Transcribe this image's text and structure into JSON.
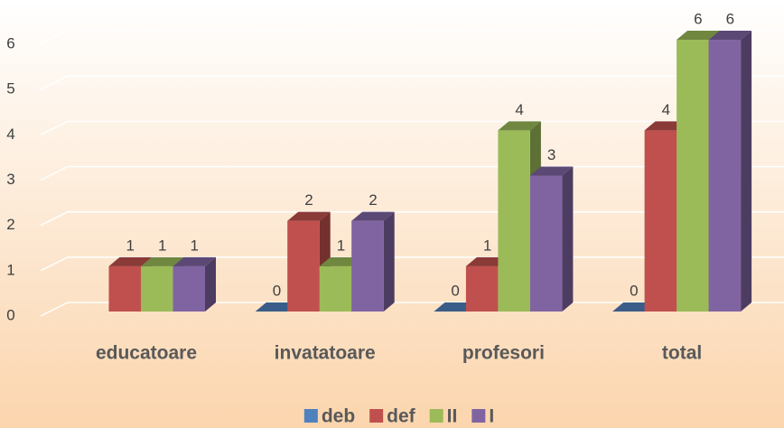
{
  "chart_data": {
    "type": "bar3d",
    "categories": [
      "educatoare",
      "invatatoare",
      "profesori",
      "total"
    ],
    "series": [
      {
        "name": "deb",
        "color": "#4f81bd",
        "values": [
          null,
          0,
          0,
          0
        ]
      },
      {
        "name": "def",
        "color": "#c0504d",
        "values": [
          1,
          2,
          1,
          4
        ]
      },
      {
        "name": "II",
        "color": "#9bbb59",
        "values": [
          1,
          1,
          4,
          6
        ]
      },
      {
        "name": "I",
        "color": "#8064a2",
        "values": [
          1,
          2,
          3,
          6
        ]
      }
    ],
    "ylim": [
      0,
      6
    ],
    "yticks": [
      0,
      1,
      2,
      3,
      4,
      5,
      6
    ],
    "grid": true,
    "legend": "bottom"
  }
}
